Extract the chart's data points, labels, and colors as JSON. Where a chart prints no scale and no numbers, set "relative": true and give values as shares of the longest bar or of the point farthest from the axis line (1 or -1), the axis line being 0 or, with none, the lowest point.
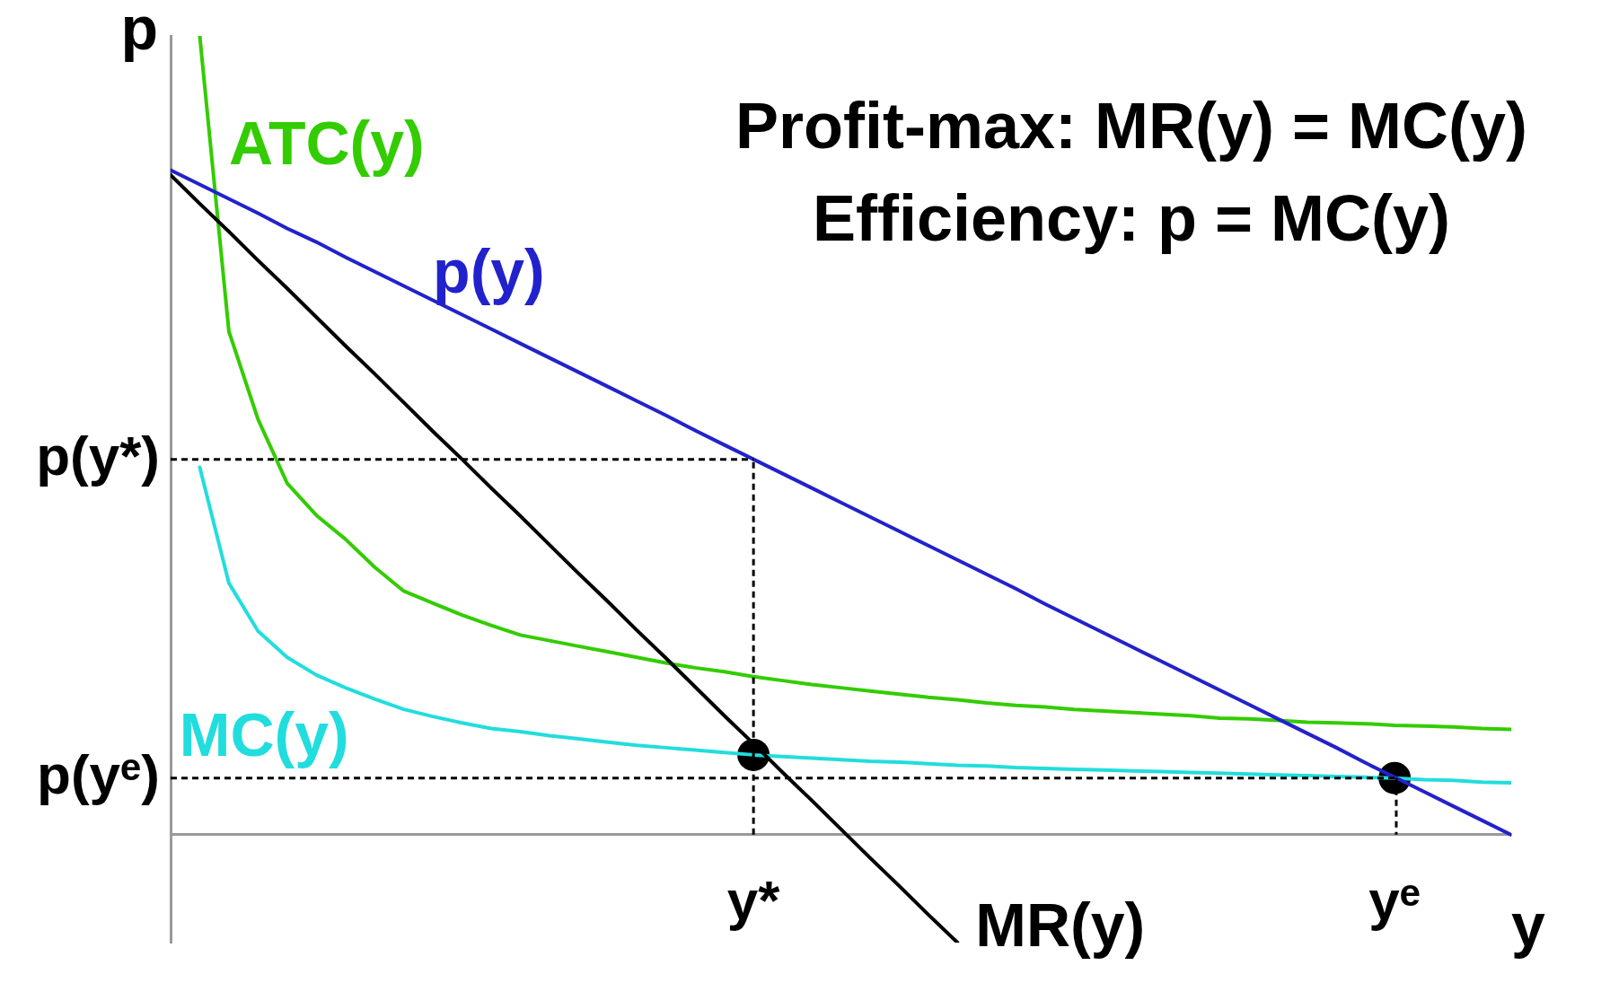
{
  "chart_data": {
    "type": "line",
    "relative": true,
    "xlabel": "y",
    "ylabel": "p",
    "annotations": [
      "Profit-max: MR(y) = MC(y)",
      "Efficiency: p = MC(y)"
    ],
    "categories": [
      null,
      null,
      null,
      null,
      null,
      null,
      null,
      null,
      null,
      null,
      null,
      null,
      null,
      null,
      null,
      null,
      null,
      null,
      null,
      null,
      "y*",
      null,
      null,
      null,
      null,
      null,
      null,
      null,
      null,
      null,
      null,
      null,
      null,
      null,
      null,
      null,
      null,
      null,
      null,
      null,
      null,
      null,
      "yᵉ",
      null,
      null,
      null,
      null
    ],
    "grid": false,
    "legend": false,
    "marker": "none",
    "line_style": "solid",
    "ref_lines": [
      {
        "axis": "y",
        "value": 0.47,
        "label": "p(y*)",
        "color": "#000000",
        "line_style": "dashed"
      },
      {
        "axis": "y",
        "value": 0.071,
        "label": "p(yᵉ)",
        "color": "#000000",
        "line_style": "dashed"
      },
      {
        "axis": "x",
        "value": "y*",
        "color": "#000000",
        "line_style": "dashed"
      }
    ],
    "series": [
      {
        "name": "p(y)",
        "color": "#2222cc",
        "values": [
          0.832,
          0.814,
          0.796,
          0.778,
          0.759,
          0.742,
          0.723,
          0.705,
          0.687,
          0.669,
          0.651,
          0.633,
          0.615,
          0.597,
          0.579,
          0.561,
          0.543,
          0.525,
          0.506,
          0.488,
          0.47,
          0.452,
          0.434,
          0.416,
          0.398,
          0.38,
          0.362,
          0.344,
          0.326,
          0.308,
          0.289,
          0.271,
          0.253,
          0.235,
          0.217,
          0.199,
          0.181,
          0.163,
          0.145,
          0.127,
          0.109,
          0.09,
          0.072,
          0.054,
          0.036,
          0.018,
          0
        ]
      },
      {
        "name": "MR(y)",
        "color": "#000000",
        "values": [
          0.826,
          0.79,
          0.755,
          0.719,
          0.684,
          0.648,
          0.612,
          0.577,
          0.541,
          0.505,
          0.47,
          0.434,
          0.399,
          0.363,
          0.327,
          0.292,
          0.256,
          0.221,
          0.185,
          0.149,
          0.114,
          0.078,
          0.043,
          0.007,
          -0.029,
          -0.064,
          -0.1,
          -0.135,
          null,
          null,
          null,
          null,
          null,
          null,
          null,
          null,
          null,
          null,
          null,
          null,
          null,
          null,
          null,
          null,
          null,
          null,
          null
        ]
      },
      {
        "name": "ATC(y)",
        "color": "#33cc00",
        "values": [
          null,
          1,
          0.63,
          0.52,
          0.44,
          0.4,
          0.37,
          0.335,
          0.305,
          0.29,
          0.275,
          0.262,
          0.25,
          0.243,
          0.236,
          0.229,
          0.222,
          0.215,
          0.209,
          0.204,
          0.198,
          0.193,
          0.188,
          0.184,
          0.18,
          0.176,
          0.172,
          0.169,
          0.165,
          0.162,
          0.16,
          0.157,
          0.155,
          0.153,
          0.151,
          0.149,
          0.146,
          0.145,
          0.143,
          0.141,
          0.14,
          0.139,
          0.137,
          0.136,
          0.135,
          0.133,
          0.132
        ]
      },
      {
        "name": "MC(y)",
        "color": "#22dddd",
        "values": [
          null,
          0.46,
          0.315,
          0.255,
          0.222,
          0.2,
          0.184,
          0.17,
          0.157,
          0.148,
          0.14,
          0.133,
          0.129,
          0.124,
          0.12,
          0.116,
          0.112,
          0.109,
          0.106,
          0.103,
          0.1,
          0.098,
          0.096,
          0.094,
          0.092,
          0.091,
          0.089,
          0.087,
          0.086,
          0.084,
          0.083,
          0.082,
          0.081,
          0.08,
          0.079,
          0.078,
          0.077,
          0.076,
          0.075,
          0.074,
          0.073,
          0.072,
          0.071,
          0.069,
          0.068,
          0.066,
          0.065
        ]
      },
      {
        "type": "scatter",
        "color": "#000000",
        "marker": "circle",
        "x": [
          "y*",
          "yᵉ"
        ],
        "values": [
          0.1,
          0.071
        ]
      }
    ]
  }
}
